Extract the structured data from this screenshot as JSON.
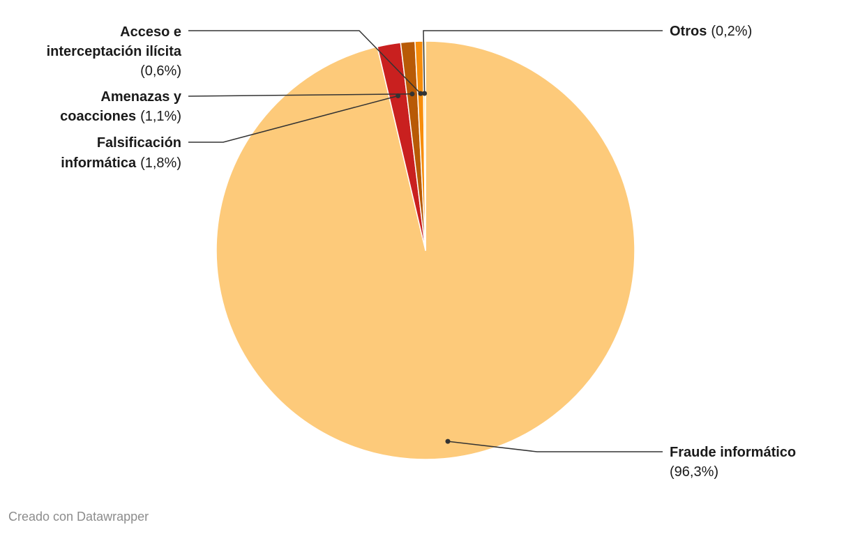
{
  "chart_data": {
    "type": "pie",
    "slices": [
      {
        "label": "Fraude informático",
        "value": 96.3,
        "pct_label": "(96,3%)",
        "color": "#fdca7a"
      },
      {
        "label": "Falsificación informática",
        "value": 1.8,
        "pct_label": "(1,8%)",
        "color": "#c9201f"
      },
      {
        "label": "Amenazas y coacciones",
        "value": 1.1,
        "pct_label": "(1,1%)",
        "color": "#b85a06"
      },
      {
        "label": "Acceso e interceptación ilícita",
        "value": 0.6,
        "pct_label": "(0,6%)",
        "color": "#f78d0b"
      },
      {
        "label": "Otros",
        "value": 0.2,
        "pct_label": "(0,2%)",
        "color": "#fdeab0"
      }
    ]
  },
  "footer": {
    "credit": "Creado con Datawrapper"
  }
}
